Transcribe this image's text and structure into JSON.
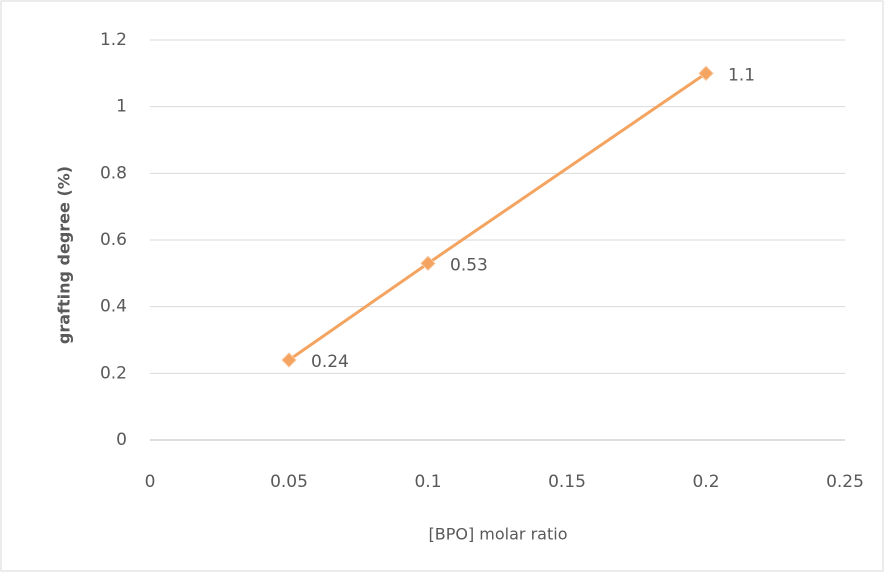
{
  "chart_data": {
    "type": "line",
    "x_label": "[BPO] molar ratio",
    "y_label": "grafting degree (%)",
    "x": [
      0.05,
      0.1,
      0.2
    ],
    "series": [
      {
        "color": "#f4a460",
        "values": [
          0.24,
          0.53,
          1.1
        ]
      }
    ],
    "xlim": [
      0,
      0.25
    ],
    "xticks": [
      0,
      0.05,
      0.1,
      0.15,
      0.2,
      0.25
    ],
    "ylim": [
      0,
      1.2
    ],
    "yticks": [
      0,
      0.2,
      0.4,
      0.6,
      0.8,
      1,
      1.2
    ],
    "grid": true,
    "data_labels": true
  }
}
